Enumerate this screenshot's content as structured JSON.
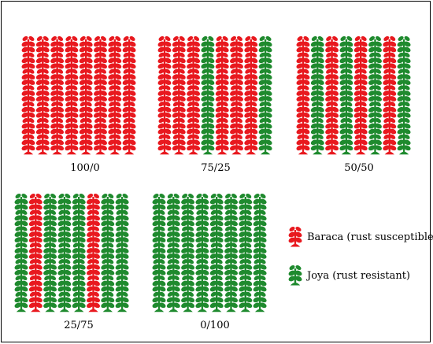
{
  "colors": {
    "susceptible": "#e8191f",
    "resistant": "#1f8a2e"
  },
  "plots": [
    {
      "label": "100/0",
      "grid": [
        "RRRRRRRR",
        "RRRRRRRR",
        "RRRRRRRR",
        "RRRRRRRR",
        "RRRRRRRR",
        "RRRRRRRR",
        "RRRRRRRR"
      ]
    },
    {
      "label": "75/25",
      "grid": [
        "RRRGRRRG",
        "RRRGRRRG",
        "RRRGRRRG",
        "RRRGRRRG",
        "RRRGRRRG",
        "RRRGRRRG",
        "RRRGRRRG"
      ]
    },
    {
      "label": "50/50",
      "grid": [
        "RGRGRGRG",
        "RGRGRGRG",
        "RGRGRGRG",
        "RGRGRGRG",
        "RGRGRGRG",
        "RGRGRGRG",
        "RGRGRGRG"
      ]
    },
    {
      "label": "25/75",
      "grid": [
        "GRGGGRGG",
        "GRGGGRGG",
        "GRGGGRGG",
        "GRGGGRGG",
        "GRGGGRGG",
        "GRGGGRGG",
        "GRGGGRGG"
      ]
    },
    {
      "label": "0/100",
      "grid": [
        "GGGGGGGG",
        "GGGGGGGG",
        "GGGGGGGG",
        "GGGGGGGG",
        "GGGGGGGG",
        "GGGGGGGG",
        "GGGGGGGG"
      ]
    }
  ],
  "legend": [
    {
      "label": "Baraca (rust susceptible)",
      "variety": "R"
    },
    {
      "label": "Joya (rust resistant)",
      "variety": "G"
    }
  ]
}
